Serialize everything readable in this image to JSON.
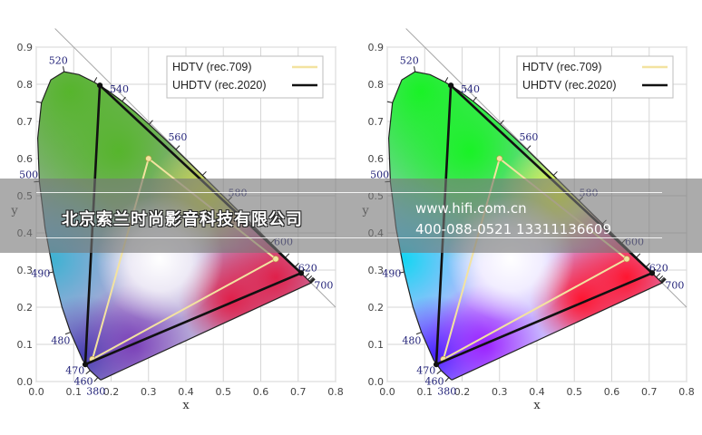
{
  "chart_data": [
    {
      "type": "scatter",
      "title": "",
      "xlabel": "x",
      "ylabel": "y",
      "xlim": [
        0,
        0.8
      ],
      "ylim": [
        0,
        0.9
      ],
      "x_ticks": [
        "0.0",
        "0.1",
        "0.2",
        "0.3",
        "0.4",
        "0.5",
        "0.6",
        "0.7",
        "0.8"
      ],
      "y_ticks": [
        "0.0",
        "0.1",
        "0.2",
        "0.3",
        "0.4",
        "0.5",
        "0.6",
        "0.7",
        "0.8",
        "0.9"
      ],
      "grid": true,
      "legend_position": "top-right",
      "saturation": "muted",
      "wavelength_labels": [
        {
          "text": "380",
          "x": 0.1741,
          "y": 0.005
        },
        {
          "text": "460",
          "x": 0.144,
          "y": 0.0297
        },
        {
          "text": "470",
          "x": 0.1241,
          "y": 0.0578
        },
        {
          "text": "480",
          "x": 0.0913,
          "y": 0.1327
        },
        {
          "text": "490",
          "x": 0.0454,
          "y": 0.295
        },
        {
          "text": "500",
          "x": 0.0082,
          "y": 0.5384
        },
        {
          "text": "520",
          "x": 0.0743,
          "y": 0.8338
        },
        {
          "text": "540",
          "x": 0.2296,
          "y": 0.7543
        },
        {
          "text": "560",
          "x": 0.3731,
          "y": 0.6245
        },
        {
          "text": "580",
          "x": 0.5125,
          "y": 0.4866
        },
        {
          "text": "600",
          "x": 0.627,
          "y": 0.3725
        },
        {
          "text": "620",
          "x": 0.6915,
          "y": 0.3083
        },
        {
          "text": "700",
          "x": 0.7347,
          "y": 0.2653
        }
      ],
      "series": [
        {
          "name": "HDTV (rec.709)",
          "color": "#f3e3a0",
          "x": [
            0.64,
            0.3,
            0.15
          ],
          "y": [
            0.33,
            0.6,
            0.06
          ]
        },
        {
          "name": "UHDTV (rec.2020)",
          "color": "#111111",
          "x": [
            0.708,
            0.17,
            0.131
          ],
          "y": [
            0.292,
            0.797,
            0.046
          ]
        }
      ]
    },
    {
      "type": "scatter",
      "title": "",
      "xlabel": "x",
      "ylabel": "y",
      "xlim": [
        0,
        0.8
      ],
      "ylim": [
        0,
        0.9
      ],
      "x_ticks": [
        "0.0",
        "0.1",
        "0.2",
        "0.3",
        "0.4",
        "0.5",
        "0.6",
        "0.7",
        "0.8"
      ],
      "y_ticks": [
        "0.0",
        "0.1",
        "0.2",
        "0.3",
        "0.4",
        "0.5",
        "0.6",
        "0.7",
        "0.8",
        "0.9"
      ],
      "grid": true,
      "legend_position": "top-right",
      "saturation": "vivid",
      "wavelength_labels": [
        {
          "text": "380",
          "x": 0.1741,
          "y": 0.005
        },
        {
          "text": "460",
          "x": 0.144,
          "y": 0.0297
        },
        {
          "text": "470",
          "x": 0.1241,
          "y": 0.0578
        },
        {
          "text": "480",
          "x": 0.0913,
          "y": 0.1327
        },
        {
          "text": "490",
          "x": 0.0454,
          "y": 0.295
        },
        {
          "text": "500",
          "x": 0.0082,
          "y": 0.5384
        },
        {
          "text": "520",
          "x": 0.0743,
          "y": 0.8338
        },
        {
          "text": "540",
          "x": 0.2296,
          "y": 0.7543
        },
        {
          "text": "560",
          "x": 0.3731,
          "y": 0.6245
        },
        {
          "text": "580",
          "x": 0.5125,
          "y": 0.4866
        },
        {
          "text": "600",
          "x": 0.627,
          "y": 0.3725
        },
        {
          "text": "620",
          "x": 0.6915,
          "y": 0.3083
        },
        {
          "text": "700",
          "x": 0.7347,
          "y": 0.2653
        }
      ],
      "series": [
        {
          "name": "HDTV (rec.709)",
          "color": "#f3e3a0",
          "x": [
            0.64,
            0.3,
            0.15
          ],
          "y": [
            0.33,
            0.6,
            0.06
          ]
        },
        {
          "name": "UHDTV (rec.2020)",
          "color": "#111111",
          "x": [
            0.708,
            0.17,
            0.131
          ],
          "y": [
            0.292,
            0.797,
            0.046
          ]
        }
      ]
    }
  ],
  "banner": {
    "company": "北京索兰时尚影音科技有限公司",
    "website": "www.hifi.com.cn",
    "phones": "400-088-0521  13311136609"
  }
}
